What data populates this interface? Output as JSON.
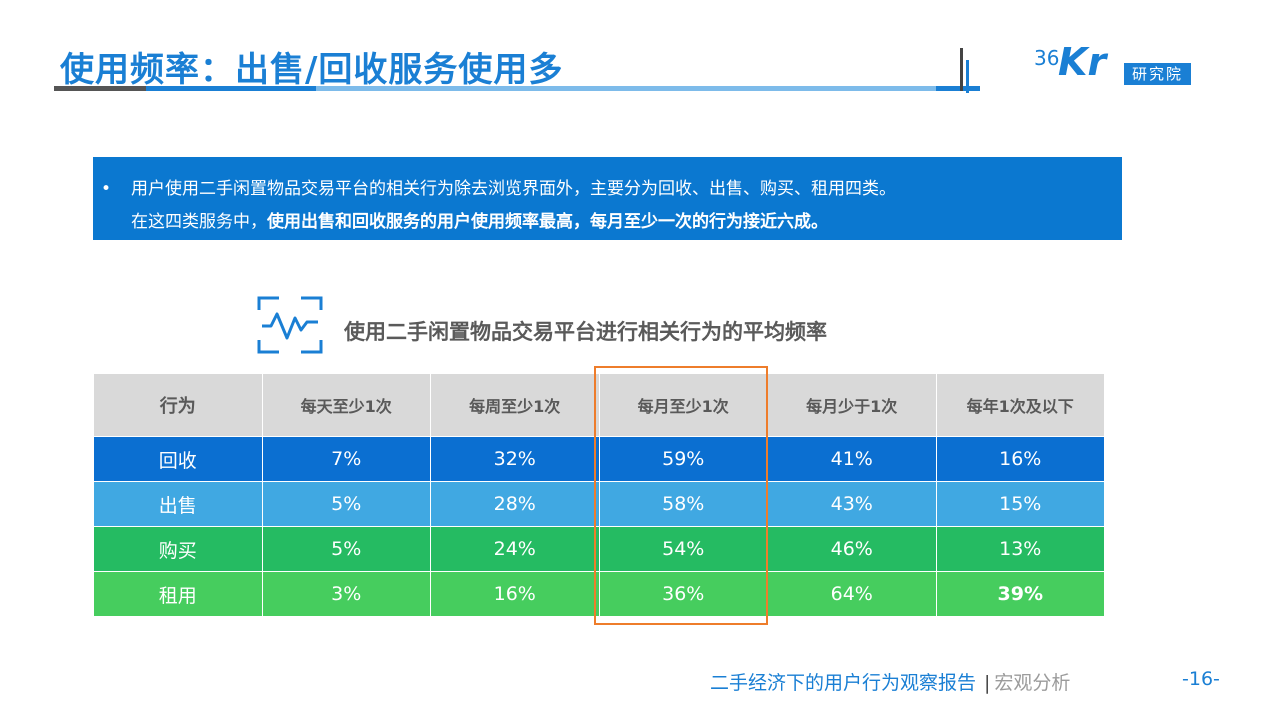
{
  "header": {
    "title": "使用频率：出售/回收服务使用多",
    "logo": {
      "number": "36",
      "letters": "Kr",
      "badge": "研究院"
    }
  },
  "banner": {
    "bullet": "•",
    "line1": "用户使用二手闲置物品交易平台的相关行为除去浏览界面外，主要分为回收、出售、购买、租用四类。",
    "line2_prefix": "在这四类服务中，",
    "line2_bold": "使用出售和回收服务的用户使用频率最高，每月至少一次的行为接近六成。"
  },
  "chart": {
    "icon": "pulse-chart-icon",
    "title": "使用二手闲置物品交易平台进行相关行为的平均频率"
  },
  "table": {
    "headers": [
      "行为",
      "每天至少1次",
      "每周至少1次",
      "每月至少1次",
      "每月少于1次",
      "每年1次及以下"
    ],
    "rows": [
      [
        "回收",
        "7%",
        "32%",
        "59%",
        "41%",
        "16%"
      ],
      [
        "出售",
        "5%",
        "28%",
        "58%",
        "43%",
        "15%"
      ],
      [
        "购买",
        "5%",
        "24%",
        "54%",
        "46%",
        "13%"
      ],
      [
        "租用",
        "3%",
        "16%",
        "36%",
        "64%",
        "39%"
      ]
    ],
    "highlight_column": "每月至少1次",
    "highlight_color": "#ee7d2b"
  },
  "footer": {
    "report": "二手经济下的用户行为观察报告",
    "separator": "|",
    "section": "宏观分析",
    "page": "-16-"
  },
  "colors": {
    "brand_blue": "#1a7fd4",
    "row_recycle": "#0b6fd1",
    "row_sell": "#40a8e2",
    "row_buy": "#25bb62",
    "row_rent": "#46cd5e"
  }
}
